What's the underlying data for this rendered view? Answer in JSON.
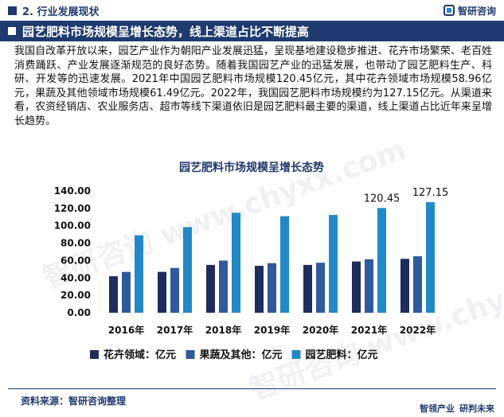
{
  "header": {
    "section_title": "2. 行业发展现状",
    "logo_text": "智研咨询"
  },
  "banner": {
    "title": "园艺肥料市场规模呈增长态势，线上渠道占比不断提高"
  },
  "intro": "我国自改革开放以来，园艺产业作为朝阳产业发展迅猛，呈现基地建设稳步推进、花卉市场繁荣、老百姓消费踊跃、产业发展逐渐规范的良好态势。随着我国园艺产业的迅猛发展，也带动了园艺肥料生产、科研、开发等的迅速发展。2021年中国园艺肥料市场规模120.45亿元，其中花卉领域市场规模58.96亿元，果蔬及其他领域市场规模61.49亿元。2022年，我国园艺肥料市场规模约为127.15亿元。从渠道来看，农资经销店、农业服务店、超市等线下渠道依旧是园艺肥料最主要的渠道，线上渠道占比近年来呈增长趋势。",
  "watermark": "智研咨询 www.chyxx.com",
  "chart_data": {
    "type": "bar",
    "title": "园艺肥料市场规模呈增长态势",
    "categories": [
      "2016年",
      "2017年",
      "2018年",
      "2019年",
      "2020年",
      "2021年",
      "2022年"
    ],
    "series": [
      {
        "name": "花卉领域：亿元",
        "color": "#1f2d5c",
        "values": [
          42,
          47,
          55,
          54,
          55,
          58.96,
          62
        ]
      },
      {
        "name": "果蔬及其他：亿元",
        "color": "#2f5a9c",
        "values": [
          47,
          51.5,
          60,
          57,
          57.5,
          61.49,
          65
        ]
      },
      {
        "name": "园艺肥料：亿元",
        "color": "#2389c6",
        "values": [
          89,
          98.5,
          115,
          111,
          112.5,
          120.45,
          127.15
        ]
      }
    ],
    "data_labels": [
      {
        "category": "2021年",
        "text": "120.45"
      },
      {
        "category": "2022年",
        "text": "127.15"
      }
    ],
    "yticks": [
      "0.00",
      "20.00",
      "40.00",
      "60.00",
      "80.00",
      "100.00",
      "120.00",
      "140.00"
    ],
    "ylim": [
      0,
      140
    ],
    "legend_position": "bottom",
    "grid": false
  },
  "footer": {
    "source": "资料来源：智研咨询整理",
    "slogan_left": "智领产业",
    "slogan_right": "研判未来"
  }
}
